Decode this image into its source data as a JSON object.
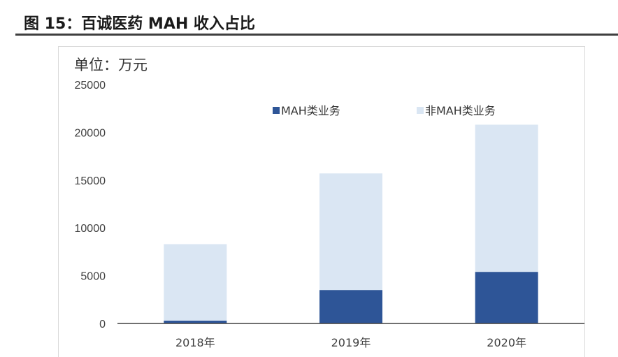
{
  "figure": {
    "title": "图 15：百诚医药 MAH 收入占比"
  },
  "chart_data": {
    "type": "bar",
    "stacked": true,
    "unit_label": "单位：万元",
    "categories": [
      "2018年",
      "2019年",
      "2020年"
    ],
    "series": [
      {
        "name": "MAH类业务",
        "values": [
          300,
          3500,
          5400
        ],
        "color": "#2e5597"
      },
      {
        "name": "非MAH类业务",
        "values": [
          8000,
          12200,
          15400
        ],
        "color": "#dae6f3"
      }
    ],
    "ylim": [
      0,
      25000
    ],
    "yticks": [
      0,
      5000,
      10000,
      15000,
      20000,
      25000
    ],
    "grid": false,
    "legend": "top"
  }
}
